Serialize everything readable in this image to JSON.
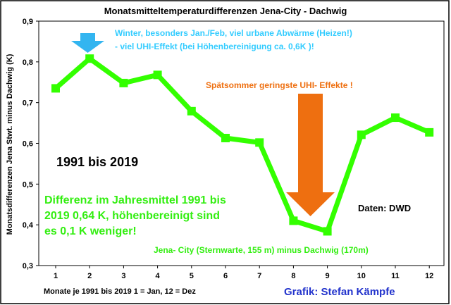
{
  "chart_data": {
    "type": "line",
    "title": "Monatsmitteltemperaturdifferenzen Jena-City - Dachwig",
    "ylabel": "Monatsdifferenzen Jena Stwt. minus Dachwig (K)",
    "xlabel": "Monate je 1991 bis 2019 1 = Jan, 12 = Dez",
    "x": [
      1,
      2,
      3,
      4,
      5,
      6,
      7,
      8,
      9,
      10,
      11,
      12
    ],
    "values": [
      0.735,
      0.808,
      0.748,
      0.768,
      0.679,
      0.613,
      0.602,
      0.41,
      0.384,
      0.621,
      0.663,
      0.627
    ],
    "ylim": [
      0.3,
      0.9
    ],
    "yticks": [
      "0,3",
      "0,4",
      "0,5",
      "0,6",
      "0,7",
      "0,8",
      "0,9"
    ],
    "xticks": [
      "1",
      "2",
      "3",
      "4",
      "5",
      "6",
      "7",
      "8",
      "9",
      "10",
      "11",
      "12"
    ],
    "grid": false,
    "line_color": "#33ff00",
    "annotations": {
      "winter_line1": "Winter, besonders Jan./Feb, viel urbane Abwärme (Heizen!)",
      "winter_line2": "- viel UHI-Effekt (bei Höhenbereinigung ca. 0,6K )!",
      "late_summer": "Spätsommer geringste UHI- Effekte !",
      "period": "1991 bis 2019",
      "diff_line1": "Differenz im Jahresmittel 1991 bis",
      "diff_line2": "2019 0,64 K, höhenbereinigt sind",
      "diff_line3": "es 0,1 K weniger!",
      "source": "Daten: DWD",
      "stations": "Jena- City (Sternwarte, 155 m) minus Dachwig (170m)",
      "credit": "Grafik: Stefan Kämpfe"
    },
    "colors": {
      "winter_text": "#33ccff",
      "winter_arrow": "#33b5f0",
      "summer_text": "#ee6f10",
      "summer_arrow": "#ee6f10",
      "green_text": "#33ee11",
      "credit_text": "#2233cc"
    }
  }
}
